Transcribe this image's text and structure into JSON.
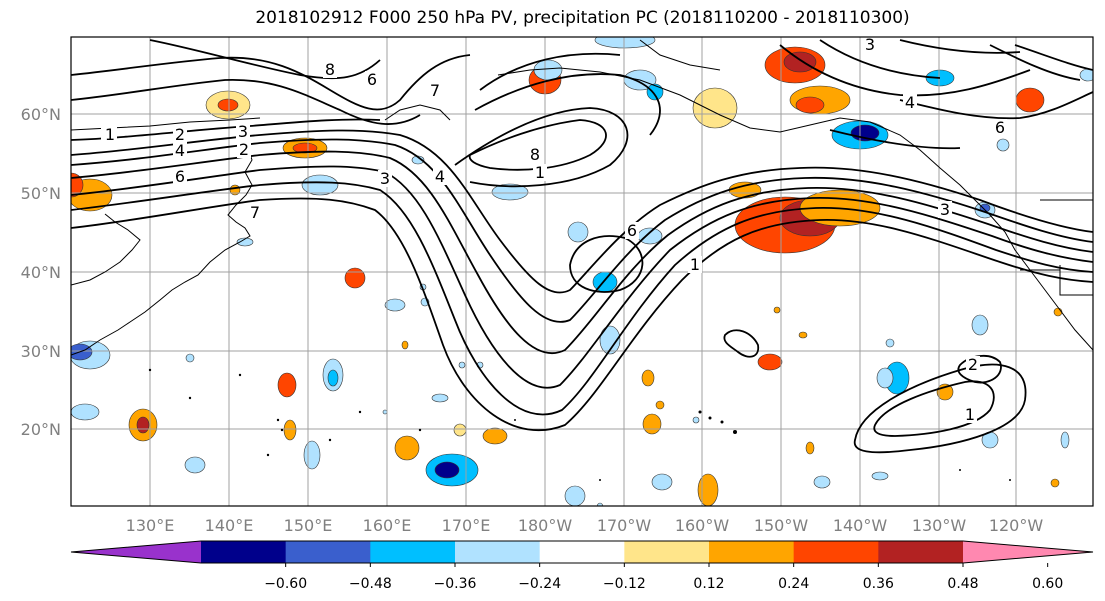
{
  "title": "2018102912 F000 250 hPa PV, precipitation PC (2018110200 - 2018110300)",
  "lon_ticks": [
    "130°E",
    "140°E",
    "150°E",
    "160°E",
    "170°E",
    "180°W",
    "170°W",
    "160°W",
    "150°W",
    "140°W",
    "130°W",
    "120°W"
  ],
  "lat_ticks": [
    "60°N",
    "50°N",
    "40°N",
    "30°N",
    "20°N"
  ],
  "colorbar": {
    "ticks": [
      "−0.60",
      "−0.48",
      "−0.36",
      "−0.24",
      "−0.12",
      "0.12",
      "0.24",
      "0.36",
      "0.48",
      "0.60"
    ],
    "colors": [
      "#9932cc",
      "#00008b",
      "#3a5fcd",
      "#00bfff",
      "#b0e2ff",
      "#ffffff",
      "#ffe58a",
      "#ffa500",
      "#ff4500",
      "#b22222",
      "#ff88b0"
    ]
  },
  "contour_labels": [
    "1",
    "2",
    "3",
    "4",
    "6",
    "7",
    "8",
    "1",
    "2",
    "3",
    "4",
    "6",
    "7",
    "8",
    "1",
    "6",
    "1",
    "2",
    "1",
    "3",
    "4",
    "6",
    "3"
  ]
}
